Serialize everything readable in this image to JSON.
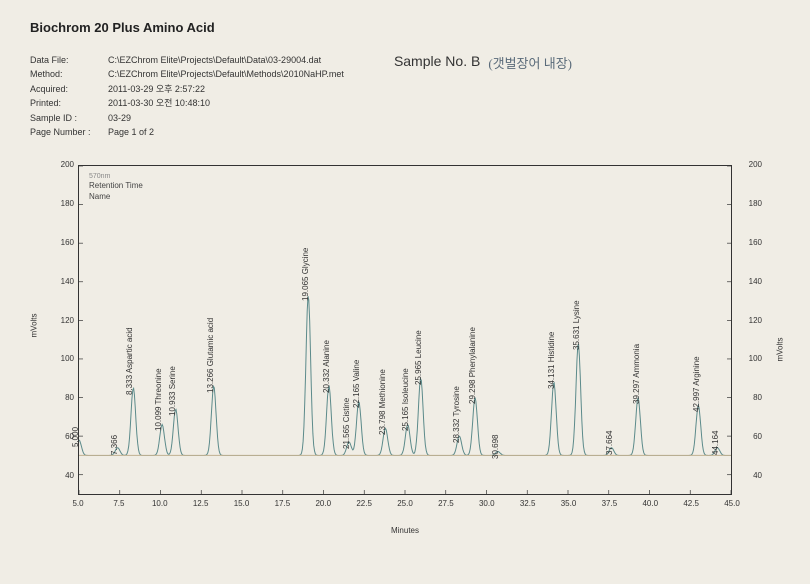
{
  "title": "Biochrom 20 Plus Amino Acid",
  "meta": {
    "dataFile": {
      "label": "Data File:",
      "value": "C:\\EZChrom Elite\\Projects\\Default\\Data\\03-29004.dat"
    },
    "method": {
      "label": "Method:",
      "value": "C:\\EZChrom Elite\\Projects\\Default\\Methods\\2010NaHP.met"
    },
    "acquired": {
      "label": "Acquired:",
      "value": "2011-03-29 오후 2:57:22"
    },
    "printed": {
      "label": "Printed:",
      "value": "2011-03-30 오전 10:48:10"
    },
    "sampleId": {
      "label": "Sample ID :",
      "value": "03-29"
    },
    "pageNumber": {
      "label": "Page Number :",
      "value": "Page 1 of 2"
    }
  },
  "sample": {
    "label": "Sample No. B",
    "handwritten": "(갯벌장어 내장)"
  },
  "chart": {
    "type": "line",
    "xlabel": "Minutes",
    "ylabel": "mVolts",
    "legend": {
      "wavelength": "570nm",
      "line1": "Retention Time",
      "line2": "Name"
    },
    "xlim": [
      5.0,
      45.0
    ],
    "ylim": [
      30,
      200
    ],
    "xtick_step": 2.5,
    "ytick_step": 20,
    "line_color": "#5b8a8a",
    "baseline_color": "#c0b090",
    "background_color": "#f0ede5",
    "baseline": 50,
    "peaks": [
      {
        "rt": 5.0,
        "height": 58,
        "label": "5.000"
      },
      {
        "rt": 7.366,
        "height": 54,
        "label": "7.366"
      },
      {
        "rt": 8.333,
        "height": 85,
        "label": "8.333  Aspartic acid"
      },
      {
        "rt": 10.099,
        "height": 66,
        "label": "10.099  Threonine"
      },
      {
        "rt": 10.933,
        "height": 74,
        "label": "10.933  Serine"
      },
      {
        "rt": 13.266,
        "height": 86,
        "label": "13.266  Glutamic acid"
      },
      {
        "rt": 19.065,
        "height": 133,
        "label": "19.065  Glycine"
      },
      {
        "rt": 20.332,
        "height": 86,
        "label": "20.332  Alanine"
      },
      {
        "rt": 21.565,
        "height": 57,
        "label": "21.565  Cistine"
      },
      {
        "rt": 22.165,
        "height": 78,
        "label": "22.165  Valine"
      },
      {
        "rt": 23.798,
        "height": 64,
        "label": "23.798  Methionine"
      },
      {
        "rt": 25.165,
        "height": 66,
        "label": "25.165  Isoleucine"
      },
      {
        "rt": 25.965,
        "height": 90,
        "label": "25.965  Leucine"
      },
      {
        "rt": 28.332,
        "height": 60,
        "label": "28.332  Tyrosine"
      },
      {
        "rt": 29.298,
        "height": 80,
        "label": "29.298  Phenylalanine"
      },
      {
        "rt": 30.698,
        "height": 52,
        "label": "30.698"
      },
      {
        "rt": 34.131,
        "height": 88,
        "label": "34.131  Histidine"
      },
      {
        "rt": 35.631,
        "height": 108,
        "label": "35.631  Lysine"
      },
      {
        "rt": 37.664,
        "height": 54,
        "label": "37.664"
      },
      {
        "rt": 39.297,
        "height": 80,
        "label": "39.297  Ammonia"
      },
      {
        "rt": 42.997,
        "height": 76,
        "label": "42.997  Arginine"
      },
      {
        "rt": 44.164,
        "height": 54,
        "label": "44.164"
      }
    ]
  }
}
